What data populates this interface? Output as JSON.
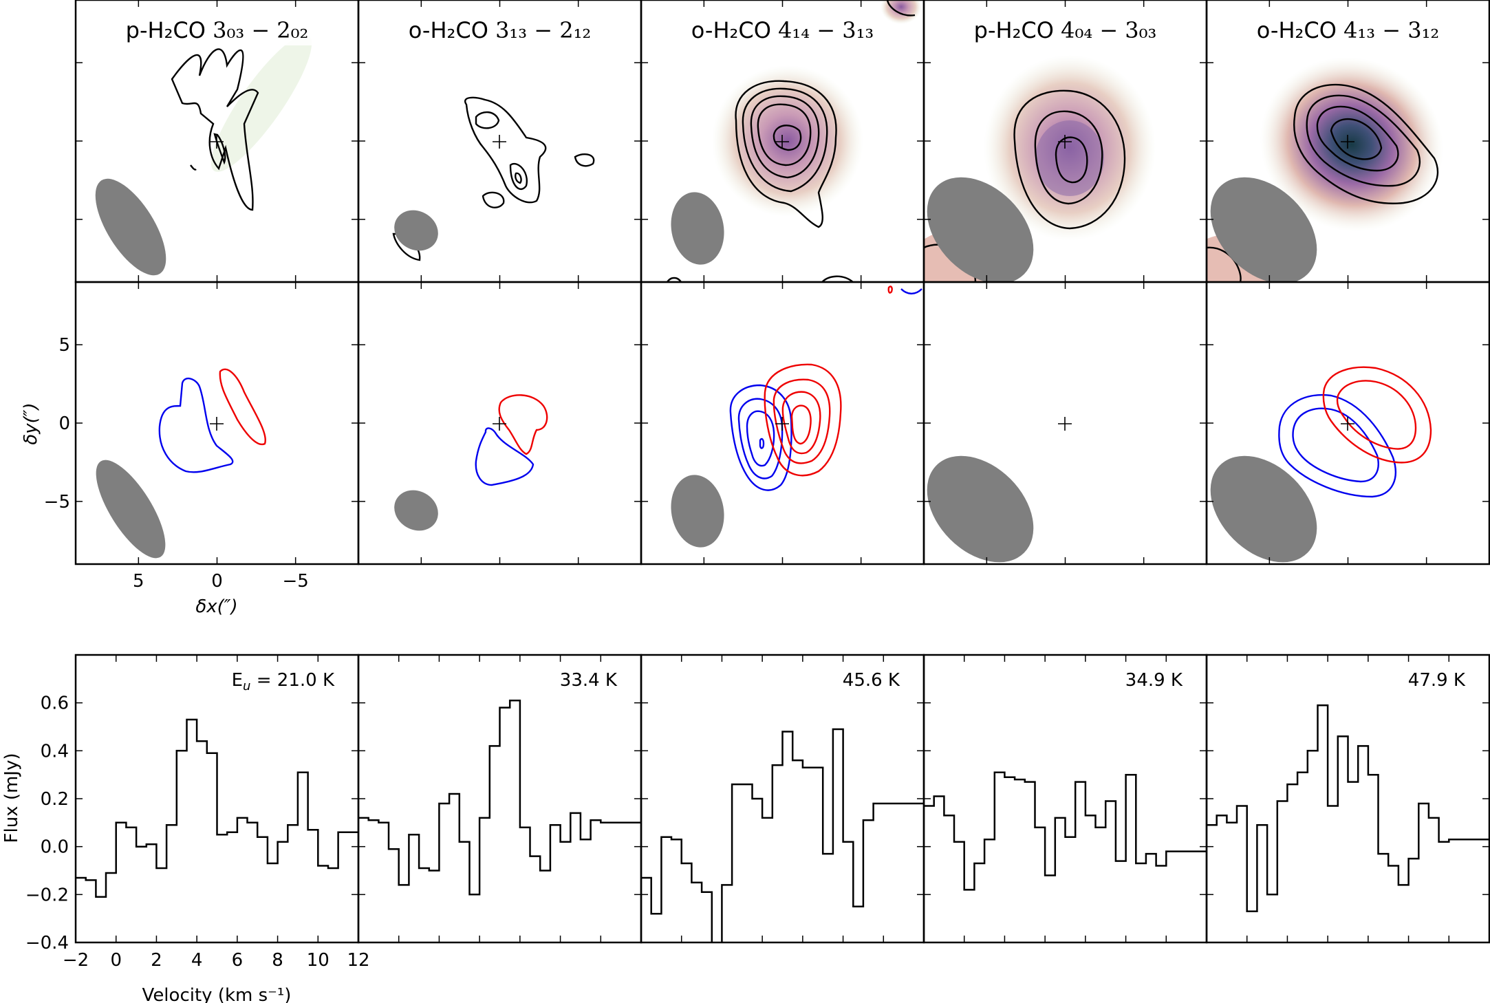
{
  "chart_data": {
    "type": "line",
    "map_panels": [
      {
        "title_main": "p-H₂CO ",
        "title_transition": "3₀₃ − 2₀₂",
        "eu_text": "E",
        "eu_sub": "u",
        "eu_value": " = 21.0 K"
      },
      {
        "title_main": "o-H₂CO ",
        "title_transition": "3₁₃ − 2₁₂",
        "eu_text": "",
        "eu_sub": "",
        "eu_value": "33.4 K"
      },
      {
        "title_main": "o-H₂CO ",
        "title_transition": "4₁₄ − 3₁₃",
        "eu_text": "",
        "eu_sub": "",
        "eu_value": "45.6 K"
      },
      {
        "title_main": "p-H₂CO ",
        "title_transition": "4₀₄ − 3₀₃",
        "eu_text": "",
        "eu_sub": "",
        "eu_value": "34.9 K"
      },
      {
        "title_main": "o-H₂CO ",
        "title_transition": "4₁₃ − 3₁₂",
        "eu_text": "",
        "eu_sub": "",
        "eu_value": "47.9 K"
      }
    ],
    "map_axes": {
      "xlabel": "δx(″)",
      "ylabel": "δy(″)",
      "xlim": [
        9,
        -9
      ],
      "ylim": [
        -9,
        9
      ],
      "xticks": [
        5,
        0,
        -5
      ],
      "yticks": [
        5,
        0,
        -5
      ],
      "xtick_labels": [
        "5",
        "0",
        "−5"
      ],
      "ytick_labels": [
        "5",
        "0",
        "−5"
      ]
    },
    "spectrum_axes": {
      "xlabel": "Velocity (km s⁻¹)",
      "ylabel": "Flux (mJy)",
      "xlim": [
        -2,
        12
      ],
      "ylim": [
        -0.4,
        0.8
      ],
      "xticks": [
        -2,
        0,
        2,
        4,
        6,
        8,
        10,
        12
      ],
      "xtick_labels": [
        "−2",
        "0",
        "2",
        "4",
        "6",
        "8",
        "10",
        "12"
      ],
      "yticks": [
        -0.4,
        -0.2,
        0.0,
        0.2,
        0.4,
        0.6
      ],
      "ytick_labels": [
        "−0.4",
        "−0.2",
        "0.0",
        "0.2",
        "0.4",
        "0.6"
      ]
    },
    "spectra": {
      "x": [
        -2.0,
        -1.5,
        -1.0,
        -0.5,
        0.0,
        0.5,
        1.0,
        1.5,
        2.0,
        2.5,
        3.0,
        3.5,
        4.0,
        4.5,
        5.0,
        5.5,
        6.0,
        6.5,
        7.0,
        7.5,
        8.0,
        8.5,
        9.0,
        9.5,
        10.0,
        10.5,
        11.0,
        11.5
      ],
      "series": [
        {
          "values": [
            -0.13,
            -0.14,
            -0.21,
            -0.11,
            0.1,
            0.08,
            0.0,
            0.01,
            -0.09,
            0.09,
            0.4,
            0.53,
            0.44,
            0.39,
            0.05,
            0.06,
            0.12,
            0.1,
            0.04,
            -0.07,
            0.02,
            0.09,
            0.31,
            0.07,
            -0.08,
            -0.09,
            0.06,
            0.06
          ]
        },
        {
          "values": [
            0.12,
            0.11,
            0.1,
            -0.01,
            -0.16,
            0.05,
            -0.09,
            -0.1,
            0.18,
            0.22,
            0.02,
            -0.2,
            0.12,
            0.42,
            0.58,
            0.61,
            0.08,
            -0.04,
            -0.1,
            0.09,
            0.02,
            0.14,
            0.03,
            0.11,
            0.1,
            0.1,
            0.1,
            0.1
          ]
        },
        {
          "values": [
            -0.13,
            -0.28,
            0.04,
            0.03,
            -0.07,
            -0.15,
            -0.19,
            -0.45,
            -0.16,
            0.26,
            0.26,
            0.2,
            0.12,
            0.34,
            0.48,
            0.36,
            0.33,
            0.33,
            -0.03,
            0.49,
            0.02,
            -0.25,
            0.11,
            0.18,
            0.18,
            0.18,
            0.18,
            0.18
          ]
        },
        {
          "values": [
            0.17,
            0.21,
            0.13,
            0.02,
            -0.18,
            -0.07,
            0.03,
            0.31,
            0.29,
            0.28,
            0.27,
            0.08,
            -0.12,
            0.12,
            0.04,
            0.27,
            0.13,
            0.08,
            0.19,
            -0.06,
            0.3,
            -0.07,
            -0.03,
            -0.08,
            -0.02,
            -0.02,
            -0.02,
            -0.02
          ]
        },
        {
          "values": [
            0.09,
            0.13,
            0.1,
            0.17,
            -0.27,
            0.09,
            -0.2,
            0.19,
            0.26,
            0.31,
            0.4,
            0.59,
            0.17,
            0.46,
            0.27,
            0.42,
            0.3,
            -0.03,
            -0.08,
            -0.16,
            -0.05,
            0.18,
            0.12,
            0.02,
            0.03,
            0.03,
            0.03,
            0.03
          ]
        }
      ]
    }
  }
}
